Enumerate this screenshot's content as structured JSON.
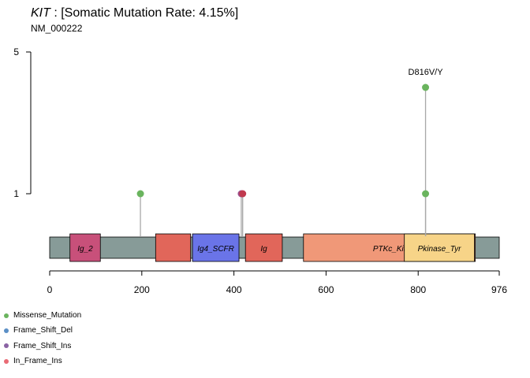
{
  "header": {
    "gene": "KIT",
    "title_rest": " : [Somatic Mutation Rate: 4.15%]",
    "subtitle": "NM_000222"
  },
  "chart_data": {
    "type": "lollipop",
    "protein_length": 976,
    "xlim": [
      0,
      976
    ],
    "x_ticks": [
      0,
      200,
      400,
      600,
      800,
      976
    ],
    "x_tick_labels": [
      "0",
      "200",
      "400",
      "600",
      "800",
      "976"
    ],
    "y_ticks": [
      1,
      5
    ],
    "y_tick_labels": [
      "1",
      "5"
    ],
    "backbone_color": "#879b98",
    "domains": [
      {
        "label": "Ig_2",
        "start": 44,
        "end": 110,
        "color": "#c8507a",
        "italic": true
      },
      {
        "label": "",
        "start": 230,
        "end": 306,
        "color": "#e1665a",
        "italic": true
      },
      {
        "label": "Ig4_SCFR",
        "start": 310,
        "end": 411,
        "color": "#6a74e8",
        "italic": true
      },
      {
        "label": "Ig",
        "start": 425,
        "end": 505,
        "color": "#e1665a",
        "italic": true
      },
      {
        "label": "PTKc_Kit",
        "start": 551,
        "end": 924,
        "color": "#f09878",
        "italic": true
      },
      {
        "label": "Pkinase_Tyr",
        "start": 770,
        "end": 922,
        "color": "#f7d488",
        "italic": true
      }
    ],
    "mutations": [
      {
        "position": 197,
        "count": 1,
        "type": "Missense_Mutation",
        "color": "#6ab45e",
        "label": ""
      },
      {
        "position": 416,
        "count": 1,
        "type": "In_Frame_Ins",
        "color": "#9a4e8c",
        "label": ""
      },
      {
        "position": 419,
        "count": 1,
        "type": "In_Frame_Ins",
        "color": "#c0394e",
        "label": ""
      },
      {
        "position": 816,
        "count": 1,
        "type": "Missense_Mutation",
        "color": "#6ab45e",
        "label": ""
      },
      {
        "position": 816,
        "count": 4,
        "type": "Missense_Mutation",
        "color": "#6ab45e",
        "label": "D816V/Y"
      }
    ],
    "legend": [
      {
        "label": "Missense_Mutation",
        "color": "#6ab45e"
      },
      {
        "label": "Frame_Shift_Del",
        "color": "#5b8fc6"
      },
      {
        "label": "Frame_Shift_Ins",
        "color": "#8a63a4"
      },
      {
        "label": "In_Frame_Ins",
        "color": "#e96b75"
      }
    ],
    "legend_position": "bottom-left"
  }
}
